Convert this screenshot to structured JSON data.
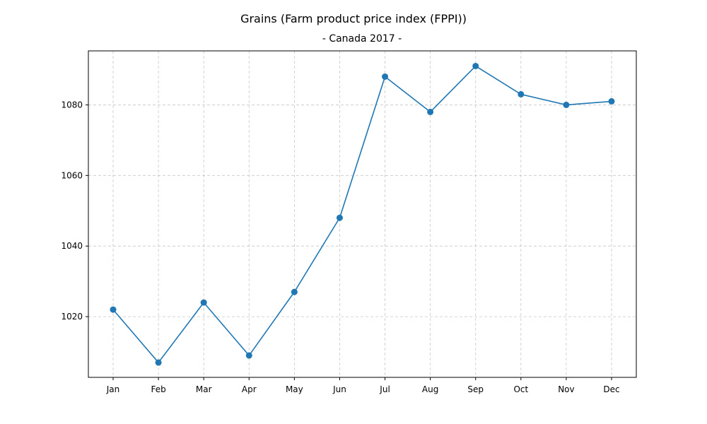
{
  "chart_data": {
    "type": "line",
    "title": "Grains (Farm product price index (FPPI))",
    "subtitle": "- Canada 2017 -",
    "xlabel": "",
    "ylabel": "",
    "categories": [
      "Jan",
      "Feb",
      "Mar",
      "Apr",
      "May",
      "Jun",
      "Jul",
      "Aug",
      "Sep",
      "Oct",
      "Nov",
      "Dec"
    ],
    "series": [
      {
        "values": [
          1022,
          1007,
          1024,
          1009,
          1027,
          1048,
          1088,
          1078,
          1091,
          1083,
          1080,
          1081
        ]
      }
    ],
    "yticks": [
      1020,
      1040,
      1060,
      1080
    ],
    "ylim": [
      1002.8,
      1095.3
    ],
    "grid": true,
    "legend": "none",
    "line_color": "#1f77b4",
    "marker": "circle"
  }
}
